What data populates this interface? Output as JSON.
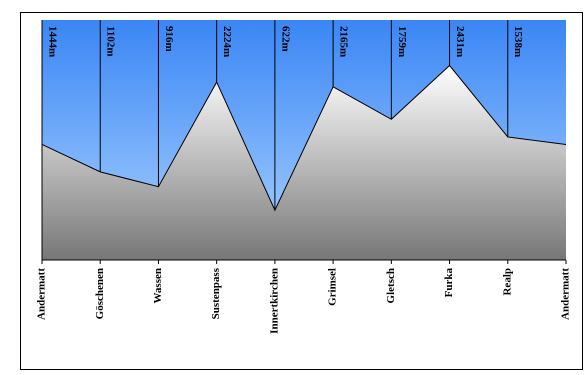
{
  "chart_data": {
    "type": "area",
    "categories": [
      "Andermatt",
      "Göschenen",
      "Wassen",
      "Sustenpass",
      "Innertkirchen",
      "Grimsel",
      "Gletsch",
      "Furka",
      "Realp",
      "Andermatt"
    ],
    "values": [
      1444,
      1102,
      916,
      2224,
      622,
      2165,
      1759,
      2431,
      1538,
      1444
    ],
    "value_labels": [
      "1444m",
      "1102m",
      "916m",
      "2224m",
      "622m",
      "2165m",
      "1759m",
      "2431m",
      "1538m",
      null
    ],
    "ylim": [
      0,
      3000
    ]
  }
}
